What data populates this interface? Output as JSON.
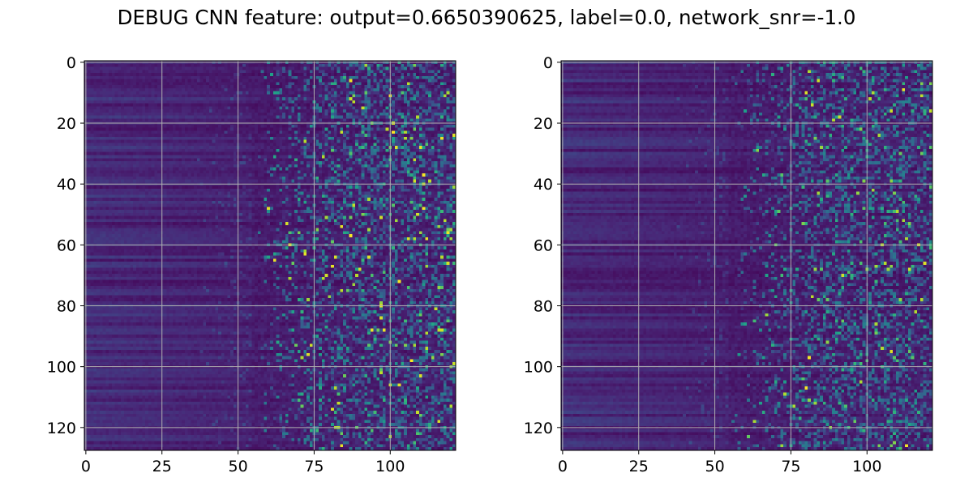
{
  "title": "DEBUG CNN feature: output=0.6650390625, label=0.0, network_snr=-1.0",
  "chart_data": [
    {
      "type": "heatmap",
      "title": "",
      "xlabel": "",
      "ylabel": "",
      "colormap": "viridis",
      "shape": [
        128,
        122
      ],
      "xlim": [
        -0.5,
        121.5
      ],
      "ylim": [
        127.5,
        -0.5
      ],
      "xticks": [
        0,
        25,
        50,
        75,
        100
      ],
      "yticks": [
        0,
        20,
        40,
        60,
        80,
        100,
        120
      ],
      "grid": true,
      "vmin": 0,
      "vmax": 1,
      "description_of_values": "mostly low values (dark purple) with row-wise horizontal banding for columns 0-55; sparse bright teal/yellow speckles increasing toward columns 65-121",
      "background_color": "#440154",
      "highlight_colors": [
        "#31688e",
        "#21918c",
        "#35b779",
        "#fde725"
      ]
    },
    {
      "type": "heatmap",
      "title": "",
      "xlabel": "",
      "ylabel": "",
      "colormap": "viridis",
      "shape": [
        128,
        122
      ],
      "xlim": [
        -0.5,
        121.5
      ],
      "ylim": [
        127.5,
        -0.5
      ],
      "xticks": [
        0,
        25,
        50,
        75,
        100
      ],
      "yticks": [
        0,
        20,
        40,
        60,
        80,
        100,
        120
      ],
      "grid": true,
      "vmin": 0,
      "vmax": 1,
      "description_of_values": "mostly low values (dark purple) with faint horizontal banding for columns 0-50; sparse teal/green speckles for columns 60-121, fewer bright yellow points than the left panel",
      "background_color": "#440154",
      "highlight_colors": [
        "#31688e",
        "#21918c",
        "#35b779",
        "#fde725"
      ]
    }
  ]
}
